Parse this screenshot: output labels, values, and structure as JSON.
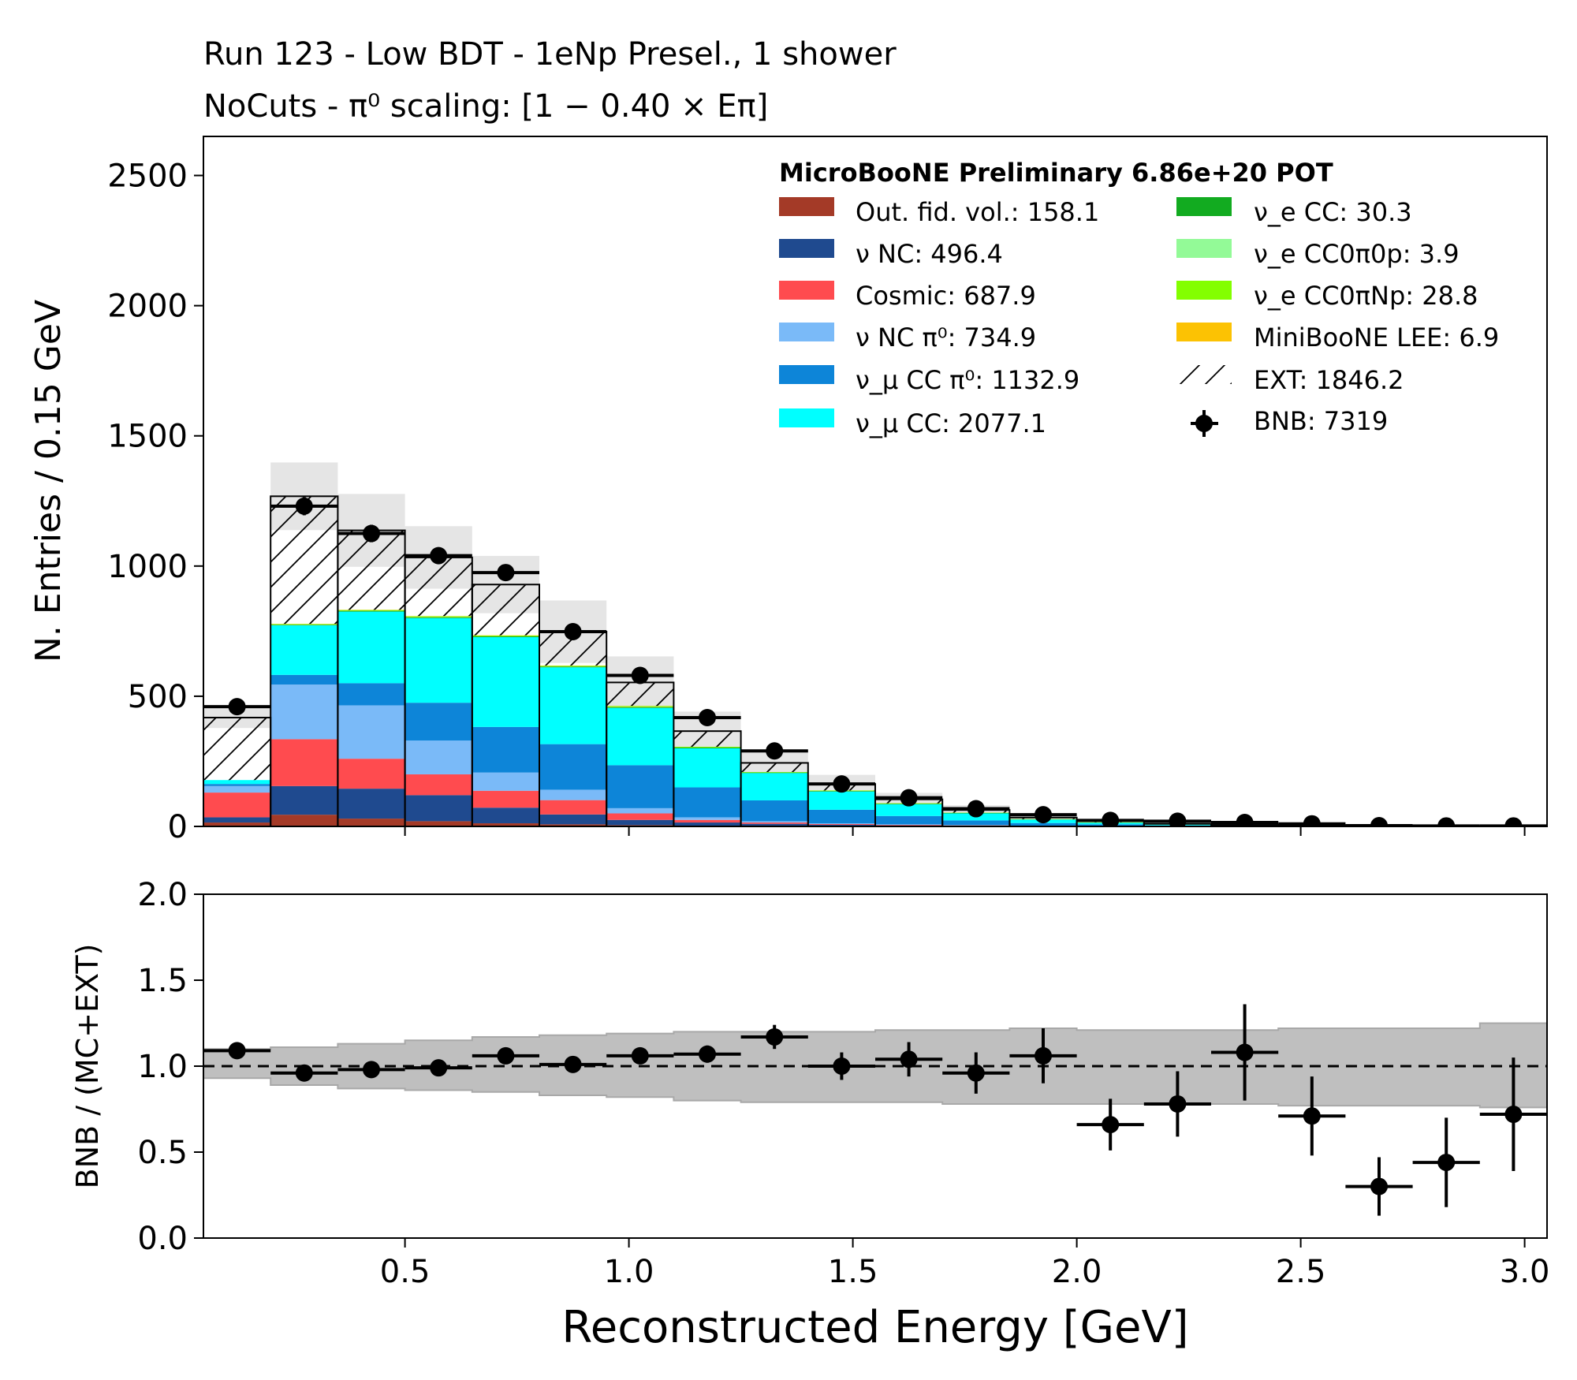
{
  "title_lines": [
    "Run 123 - Low BDT - 1eNp Presel., 1 shower",
    "NoCuts - π⁰ scaling: [1 − 0.40 × Eπ]"
  ],
  "chart_data": [
    {
      "type": "bar",
      "stacked": true,
      "ylabel": "N. Entries / 0.15 GeV",
      "ylim": [
        0,
        2650
      ],
      "yticks": [
        0,
        500,
        1000,
        1500,
        2000,
        2500
      ],
      "xlim": [
        0.05,
        3.05
      ],
      "bin_edges": [
        0.05,
        0.2,
        0.35,
        0.5,
        0.65,
        0.8,
        0.95,
        1.1,
        1.25,
        1.4,
        1.55,
        1.7,
        1.85,
        2.0,
        2.15,
        2.3,
        2.45,
        2.6,
        2.75,
        2.9,
        3.05
      ],
      "legend_header": "MicroBooNE Preliminary 6.86e+20 POT",
      "legend_position": "top-right",
      "series": [
        {
          "name": "Out. fid. vol.: 158.1",
          "color": "#a43a27",
          "values": [
            15,
            45,
            30,
            20,
            12,
            8,
            5,
            3,
            2,
            1,
            1,
            1,
            0,
            0,
            0,
            0,
            0,
            0,
            0,
            0
          ]
        },
        {
          "name": "ν NC: 496.4",
          "color": "#1f4a8f",
          "values": [
            20,
            110,
            115,
            100,
            60,
            38,
            20,
            12,
            8,
            5,
            3,
            2,
            1,
            1,
            1,
            0,
            0,
            0,
            0,
            0
          ]
        },
        {
          "name": "Cosmic: 687.9",
          "color": "#ff4b4f",
          "values": [
            95,
            180,
            115,
            80,
            65,
            55,
            25,
            10,
            5,
            3,
            2,
            1,
            1,
            1,
            0,
            0,
            0,
            0,
            0,
            0
          ]
        },
        {
          "name": "ν NC π⁰: 734.9",
          "color": "#7abaf8",
          "values": [
            25,
            210,
            205,
            130,
            70,
            40,
            20,
            10,
            5,
            3,
            2,
            1,
            1,
            0,
            0,
            0,
            0,
            0,
            0,
            0
          ]
        },
        {
          "name": "ν_μ CC π⁰: 1132.9",
          "color": "#0d85d8",
          "values": [
            8,
            37,
            85,
            145,
            175,
            175,
            165,
            115,
            80,
            52,
            32,
            18,
            10,
            6,
            3,
            2,
            1,
            1,
            0,
            0
          ]
        },
        {
          "name": "ν_μ CC: 2077.1",
          "color": "#00ffff",
          "values": [
            15,
            190,
            275,
            325,
            345,
            295,
            220,
            150,
            105,
            70,
            45,
            27,
            13,
            6,
            3,
            2,
            1,
            1,
            0,
            0
          ]
        },
        {
          "name": "ν_e CC: 30.3",
          "color": "#12ab20",
          "values": [
            0,
            2,
            3,
            3,
            3,
            3,
            3,
            3,
            2,
            2,
            2,
            2,
            1,
            1,
            1,
            0,
            0,
            0,
            0,
            0
          ]
        },
        {
          "name": "ν_e CC0π0p: 3.9",
          "color": "#93fa97",
          "values": [
            0,
            1,
            0,
            1,
            0,
            0,
            1,
            0,
            0,
            0,
            0,
            0,
            0,
            0,
            0,
            0,
            0,
            0,
            0,
            0
          ]
        },
        {
          "name": "ν_e CC0πNp: 28.8",
          "color": "#83ff00",
          "values": [
            0,
            2,
            3,
            3,
            3,
            3,
            3,
            3,
            2,
            2,
            2,
            1,
            1,
            1,
            0,
            0,
            0,
            0,
            0,
            0
          ]
        },
        {
          "name": "MiniBooNE LEE: 6.9",
          "color": "#fcc203",
          "values": [
            0,
            1,
            1,
            1,
            1,
            1,
            1,
            0,
            0,
            0,
            0,
            0,
            0,
            0,
            0,
            0,
            0,
            0,
            0,
            0
          ]
        },
        {
          "name": "EXT: 1846.2",
          "color": "hatch",
          "values": [
            240,
            490,
            305,
            225,
            195,
            130,
            90,
            60,
            35,
            25,
            15,
            10,
            6,
            5,
            2,
            2,
            2,
            1,
            1,
            1
          ]
        }
      ],
      "data_points": {
        "name": "BNB: 7319",
        "color": "#000000",
        "values": [
          460,
          1230,
          1125,
          1040,
          975,
          748,
          580,
          418,
          290,
          163,
          110,
          68,
          45,
          23,
          20,
          15,
          10,
          3,
          2,
          2
        ]
      },
      "mc_uncertainty": [
        40,
        130,
        140,
        120,
        110,
        120,
        100,
        75,
        50,
        35,
        25,
        18,
        12,
        8,
        6,
        4,
        3,
        2,
        2,
        2
      ]
    },
    {
      "type": "scatter",
      "xlabel": "Reconstructed Energy [GeV]",
      "ylabel": "BNB / (MC+EXT)",
      "ylim": [
        0,
        2.0
      ],
      "yticks": [
        0.0,
        0.5,
        1.0,
        1.5,
        2.0
      ],
      "xticks": [
        0.5,
        1.0,
        1.5,
        2.0,
        2.5,
        3.0
      ],
      "reference_line": 1.0,
      "ratio": [
        1.09,
        0.96,
        0.98,
        0.99,
        1.06,
        1.01,
        1.06,
        1.07,
        1.17,
        1.0,
        1.04,
        0.96,
        1.06,
        0.66,
        0.78,
        1.08,
        0.71,
        0.3,
        0.44,
        0.72
      ],
      "ratio_err": [
        0.03,
        0.03,
        0.03,
        0.03,
        0.04,
        0.04,
        0.04,
        0.05,
        0.07,
        0.08,
        0.1,
        0.12,
        0.16,
        0.15,
        0.19,
        0.28,
        0.23,
        0.17,
        0.26,
        0.33
      ],
      "band_low": [
        0.93,
        0.89,
        0.87,
        0.86,
        0.85,
        0.83,
        0.82,
        0.8,
        0.79,
        0.79,
        0.79,
        0.78,
        0.78,
        0.78,
        0.78,
        0.78,
        0.77,
        0.77,
        0.77,
        0.76
      ],
      "band_high": [
        1.1,
        1.11,
        1.13,
        1.15,
        1.17,
        1.18,
        1.19,
        1.2,
        1.2,
        1.2,
        1.21,
        1.21,
        1.22,
        1.21,
        1.21,
        1.21,
        1.22,
        1.22,
        1.22,
        1.25
      ]
    }
  ],
  "ticks_main": [
    "0",
    "500",
    "1000",
    "1500",
    "2000",
    "2500"
  ],
  "ticks_ratio": [
    "0.0",
    "0.5",
    "1.0",
    "1.5",
    "2.0"
  ],
  "ticks_x": [
    "0.5",
    "1.0",
    "1.5",
    "2.0",
    "2.5",
    "3.0"
  ]
}
